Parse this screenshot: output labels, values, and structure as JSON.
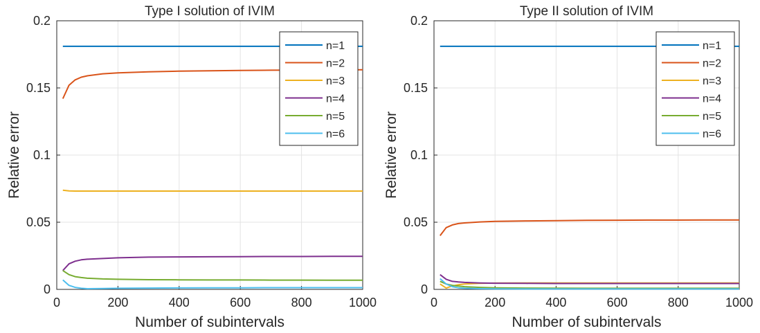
{
  "chart_data": [
    {
      "type": "line",
      "title": "Type I solution of IVIM",
      "xlabel": "Number of subintervals",
      "ylabel": "Relative error",
      "xlim": [
        0,
        1000
      ],
      "ylim": [
        0,
        0.2
      ],
      "xticks": [
        "0",
        "200",
        "400",
        "600",
        "800",
        "1000"
      ],
      "yticks": [
        "0",
        "0.05",
        "0.1",
        "0.15",
        "0.2"
      ],
      "grid": true,
      "legend_position": "top-right",
      "x": [
        20,
        40,
        60,
        80,
        100,
        150,
        200,
        300,
        400,
        500,
        600,
        700,
        800,
        900,
        1000
      ],
      "series": [
        {
          "name": "n=1",
          "color": "#0072BD",
          "values": [
            0.181,
            0.181,
            0.181,
            0.181,
            0.181,
            0.181,
            0.181,
            0.181,
            0.181,
            0.181,
            0.181,
            0.181,
            0.181,
            0.181,
            0.181
          ]
        },
        {
          "name": "n=2",
          "color": "#D95319",
          "values": [
            0.142,
            0.152,
            0.156,
            0.158,
            0.159,
            0.1605,
            0.1612,
            0.162,
            0.1625,
            0.1628,
            0.163,
            0.1632,
            0.1633,
            0.1634,
            0.1635
          ]
        },
        {
          "name": "n=3",
          "color": "#EDB120",
          "values": [
            0.0738,
            0.0733,
            0.0732,
            0.0732,
            0.0732,
            0.0732,
            0.0732,
            0.0732,
            0.0732,
            0.0732,
            0.0732,
            0.0732,
            0.0732,
            0.0732,
            0.0732
          ]
        },
        {
          "name": "n=4",
          "color": "#7E2F8E",
          "values": [
            0.014,
            0.019,
            0.021,
            0.022,
            0.0225,
            0.023,
            0.0235,
            0.024,
            0.0242,
            0.0243,
            0.0244,
            0.0245,
            0.0245,
            0.0246,
            0.0246
          ]
        },
        {
          "name": "n=5",
          "color": "#77AC30",
          "values": [
            0.014,
            0.011,
            0.0095,
            0.0088,
            0.0083,
            0.0078,
            0.0075,
            0.0072,
            0.0071,
            0.007,
            0.007,
            0.0069,
            0.0069,
            0.0068,
            0.0068
          ]
        },
        {
          "name": "n=6",
          "color": "#4DBEEE",
          "values": [
            0.007,
            0.003,
            0.0015,
            0.0008,
            0.0005,
            0.0006,
            0.0008,
            0.001,
            0.0011,
            0.0012,
            0.0012,
            0.0013,
            0.0013,
            0.0013,
            0.0013
          ]
        }
      ]
    },
    {
      "type": "line",
      "title": "Type II solution of IVIM",
      "xlabel": "Number of subintervals",
      "ylabel": "Relative error",
      "xlim": [
        0,
        1000
      ],
      "ylim": [
        0,
        0.2
      ],
      "xticks": [
        "0",
        "200",
        "400",
        "600",
        "800",
        "1000"
      ],
      "yticks": [
        "0",
        "0.05",
        "0.1",
        "0.15",
        "0.2"
      ],
      "grid": true,
      "legend_position": "top-right",
      "x": [
        20,
        40,
        60,
        80,
        100,
        150,
        200,
        300,
        400,
        500,
        600,
        700,
        800,
        900,
        1000
      ],
      "series": [
        {
          "name": "n=1",
          "color": "#0072BD",
          "values": [
            0.181,
            0.181,
            0.181,
            0.181,
            0.181,
            0.181,
            0.181,
            0.181,
            0.181,
            0.181,
            0.181,
            0.181,
            0.181,
            0.181,
            0.181
          ]
        },
        {
          "name": "n=2",
          "color": "#D95319",
          "values": [
            0.04,
            0.046,
            0.048,
            0.049,
            0.0495,
            0.0502,
            0.0506,
            0.051,
            0.0512,
            0.0514,
            0.0515,
            0.0516,
            0.0516,
            0.0517,
            0.0517
          ]
        },
        {
          "name": "n=3",
          "color": "#EDB120",
          "values": [
            0.004,
            0.001,
            0.0025,
            0.0035,
            0.004,
            0.0045,
            0.0047,
            0.0048,
            0.0048,
            0.0048,
            0.0048,
            0.0048,
            0.0048,
            0.0048,
            0.0048
          ]
        },
        {
          "name": "n=4",
          "color": "#7E2F8E",
          "values": [
            0.011,
            0.0075,
            0.006,
            0.0055,
            0.0052,
            0.0048,
            0.0046,
            0.0045,
            0.0044,
            0.0044,
            0.0044,
            0.0044,
            0.0044,
            0.0044,
            0.0044
          ]
        },
        {
          "name": "n=5",
          "color": "#77AC30",
          "values": [
            0.006,
            0.004,
            0.003,
            0.0025,
            0.002,
            0.0015,
            0.0012,
            0.001,
            0.0009,
            0.0008,
            0.0008,
            0.0008,
            0.0008,
            0.0008,
            0.0008
          ]
        },
        {
          "name": "n=6",
          "color": "#4DBEEE",
          "values": [
            0.008,
            0.004,
            0.002,
            0.0012,
            0.0008,
            0.0005,
            0.0004,
            0.0003,
            0.0003,
            0.0003,
            0.0003,
            0.0003,
            0.0003,
            0.0003,
            0.0003
          ]
        }
      ]
    }
  ]
}
